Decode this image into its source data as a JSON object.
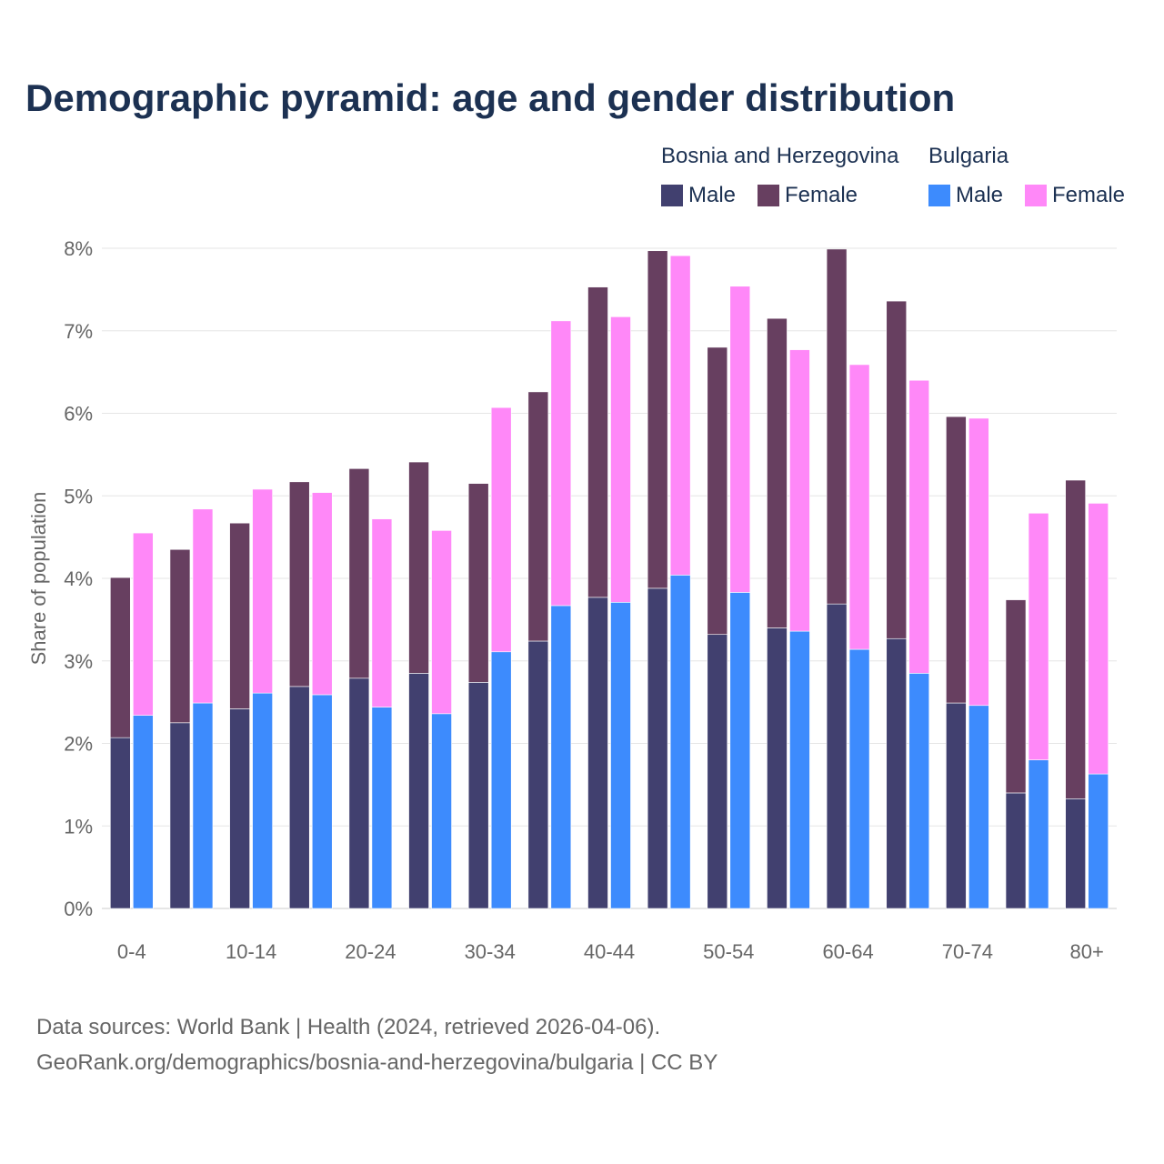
{
  "chart_data": {
    "type": "bar",
    "stacked": true,
    "title": "Demographic pyramid: age and gender distribution",
    "xlabel": "",
    "ylabel": "Share of population",
    "ylim": [
      0,
      8
    ],
    "y_ticks": [
      "0%",
      "1%",
      "2%",
      "3%",
      "4%",
      "5%",
      "6%",
      "7%",
      "8%"
    ],
    "grid": true,
    "legend_placement": "top-right",
    "categories": [
      "0-4",
      "5-9",
      "10-14",
      "15-19",
      "20-24",
      "25-29",
      "30-34",
      "35-39",
      "40-44",
      "45-49",
      "50-54",
      "55-59",
      "60-64",
      "65-69",
      "70-74",
      "75-79",
      "80+"
    ],
    "visible_tick_labels": [
      "0-4",
      "10-14",
      "20-24",
      "30-34",
      "40-44",
      "50-54",
      "60-64",
      "70-74",
      "80+"
    ],
    "groups": [
      {
        "name": "Bosnia and Herzegovina",
        "series": [
          {
            "name": "Male",
            "color": "#41406f",
            "values": [
              2.07,
              2.25,
              2.42,
              2.69,
              2.79,
              2.85,
              2.74,
              3.24,
              3.77,
              3.88,
              3.32,
              3.4,
              3.69,
              3.27,
              2.49,
              1.4,
              1.33
            ]
          },
          {
            "name": "Female",
            "color": "#673f60",
            "values": [
              1.94,
              2.1,
              2.25,
              2.48,
              2.54,
              2.56,
              2.41,
              3.02,
              3.76,
              4.09,
              3.48,
              3.75,
              4.3,
              4.09,
              3.47,
              2.34,
              3.86
            ]
          }
        ]
      },
      {
        "name": "Bulgaria",
        "series": [
          {
            "name": "Male",
            "color": "#3d8bfd",
            "values": [
              2.34,
              2.49,
              2.61,
              2.59,
              2.44,
              2.36,
              3.11,
              3.67,
              3.71,
              4.04,
              3.83,
              3.36,
              3.14,
              2.85,
              2.46,
              1.8,
              1.63
            ]
          },
          {
            "name": "Female",
            "color": "#ff88f8",
            "values": [
              2.21,
              2.35,
              2.47,
              2.45,
              2.28,
              2.22,
              2.96,
              3.45,
              3.46,
              3.87,
              3.71,
              3.41,
              3.45,
              3.55,
              3.48,
              2.99,
              3.28
            ]
          }
        ]
      }
    ]
  },
  "footer": {
    "line1": "Data sources: World Bank | Health (2024, retrieved 2026-04-06).",
    "line2": "GeoRank.org/demographics/bosnia-and-herzegovina/bulgaria | CC BY"
  }
}
